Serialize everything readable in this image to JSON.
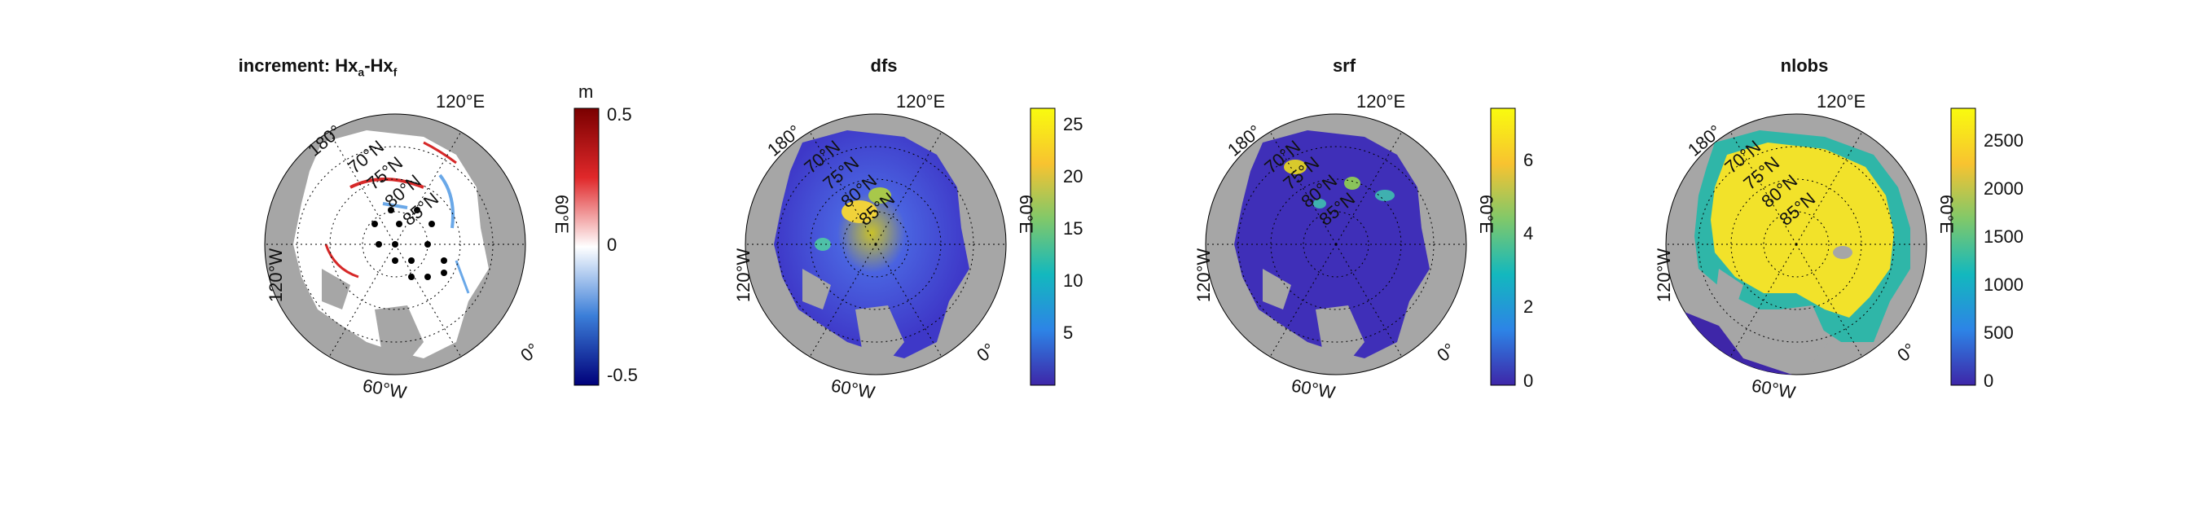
{
  "panels": [
    {
      "title_main": "increment: Hx",
      "title_sub1": "a",
      "title_mid": "-Hx",
      "title_sub2": "f",
      "colormap": "blue-white-red",
      "colorbar_unit": "m",
      "colorbar_ticks": [
        "0.5",
        "0",
        "-0.5"
      ]
    },
    {
      "title": "dfs",
      "colormap": "parula",
      "colorbar_ticks": [
        "25",
        "20",
        "15",
        "10",
        "5"
      ]
    },
    {
      "title": "srf",
      "colormap": "parula",
      "colorbar_ticks": [
        "6",
        "4",
        "2",
        "0"
      ]
    },
    {
      "title": "nlobs",
      "colormap": "parula",
      "colorbar_ticks": [
        "2500",
        "2000",
        "1500",
        "1000",
        "500",
        "0"
      ]
    }
  ],
  "map_labels": {
    "lon_120e": "120°E",
    "lon_180": "180°",
    "lon_60e": "60°E",
    "lon_120w": "120°W",
    "lon_60w": "60°W",
    "lon_0": "0°",
    "lat_70": "70°N",
    "lat_75": "75°N",
    "lat_80": "80°N",
    "lat_85": "85°N"
  },
  "colors": {
    "land": "#a6a6a6",
    "ocean_white": "#ffffff",
    "parula_low": "#3e26a8",
    "parula_high": "#f9fb0e"
  }
}
